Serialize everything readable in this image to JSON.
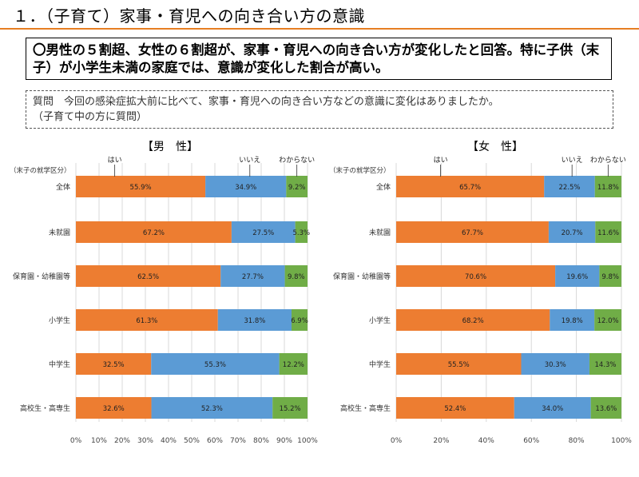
{
  "title": "１．（子育て）家事・育児への向き合い方の意識",
  "summary": "〇男性の５割超、女性の６割超が、家事・育児への向き合い方が変化したと回答。特に子供（末子）が小学生未満の家庭では、意識が変化した割合が高い。",
  "question": {
    "line1": "質問　今回の感染症拡大前に比べて、家事・育児への向き合い方などの意識に変化はありましたか。",
    "line2": "（子育て中の方に質問）"
  },
  "colors": {
    "yes": "#ed7d31",
    "no": "#5b9bd5",
    "unknown": "#70ad47"
  },
  "chart_data": [
    {
      "type": "bar",
      "orientation": "horizontal",
      "stacked": true,
      "title": "【男　性】",
      "category_label": "（末子の就学区分）",
      "categories": [
        "全体",
        "未就園",
        "保育園・幼稚園等",
        "小学生",
        "中学生",
        "高校生・高専生"
      ],
      "series": [
        {
          "name": "はい",
          "values": [
            55.9,
            67.2,
            62.5,
            61.3,
            32.5,
            32.6
          ],
          "labels": [
            "55.9%",
            "67.2%",
            "62.5%",
            "61.3%",
            "32.5%",
            "32.6%"
          ]
        },
        {
          "name": "いいえ",
          "values": [
            34.9,
            27.5,
            27.7,
            31.8,
            55.3,
            52.3
          ],
          "labels": [
            "34.9%",
            "27.5%",
            "27.7%",
            "31.8%",
            "55.3%",
            "52.3%"
          ]
        },
        {
          "name": "わからない",
          "values": [
            9.2,
            5.3,
            9.8,
            6.9,
            12.2,
            15.2
          ],
          "labels": [
            "9.2%",
            "5.3%",
            "9.8%",
            "6.9%",
            "12.2%",
            "15.2%"
          ]
        }
      ],
      "xlim": [
        0,
        100
      ],
      "xticks": [
        "0%",
        "10%",
        "20%",
        "30%",
        "40%",
        "50%",
        "60%",
        "70%",
        "80%",
        "90%",
        "100%"
      ]
    },
    {
      "type": "bar",
      "orientation": "horizontal",
      "stacked": true,
      "title": "【女　性】",
      "category_label": "（末子の就学区分）",
      "categories": [
        "全体",
        "未就園",
        "保育園・幼稚園等",
        "小学生",
        "中学生",
        "高校生・高専生"
      ],
      "series": [
        {
          "name": "はい",
          "values": [
            65.7,
            67.7,
            70.6,
            68.2,
            55.5,
            52.4
          ],
          "labels": [
            "65.7%",
            "67.7%",
            "70.6%",
            "68.2%",
            "55.5%",
            "52.4%"
          ]
        },
        {
          "name": "いいえ",
          "values": [
            22.5,
            20.7,
            19.6,
            19.8,
            30.3,
            34.0
          ],
          "labels": [
            "22.5%",
            "20.7%",
            "19.6%",
            "19.8%",
            "30.3%",
            "34.0%"
          ]
        },
        {
          "name": "わからない",
          "values": [
            11.8,
            11.6,
            9.8,
            12.0,
            14.3,
            13.6
          ],
          "labels": [
            "11.8%",
            "11.6%",
            "9.8%",
            "12.0%",
            "14.3%",
            "13.6%"
          ]
        }
      ],
      "xlim": [
        0,
        100
      ],
      "xticks": [
        "0%",
        "20%",
        "40%",
        "60%",
        "80%",
        "100%"
      ]
    }
  ]
}
